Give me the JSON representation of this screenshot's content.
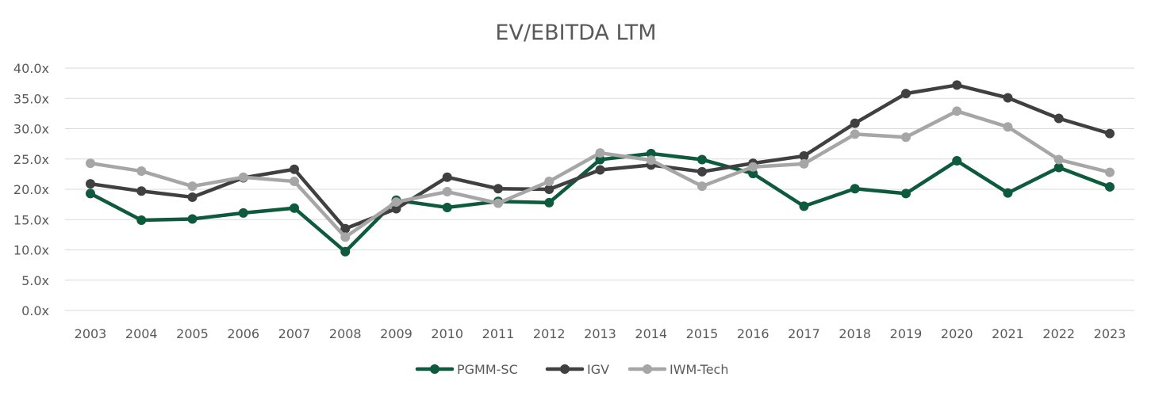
{
  "chart_data": {
    "type": "line",
    "title": "EV/EBITDA LTM",
    "xlabel": "",
    "ylabel": "",
    "categories": [
      "2003",
      "2004",
      "2005",
      "2006",
      "2007",
      "2008",
      "2009",
      "2010",
      "2011",
      "2012",
      "2013",
      "2014",
      "2015",
      "2016",
      "2017",
      "2018",
      "2019",
      "2020",
      "2021",
      "2022",
      "2023"
    ],
    "ylim": [
      0,
      40
    ],
    "yticks": [
      "0.0x",
      "5.0x",
      "10.0x",
      "15.0x",
      "20.0x",
      "25.0x",
      "30.0x",
      "35.0x",
      "40.0x"
    ],
    "grid": true,
    "legend_position": "bottom",
    "series": [
      {
        "name": "PGMM-SC",
        "color": "#0d5a3c",
        "values": [
          19.3,
          14.9,
          15.1,
          16.1,
          16.9,
          9.7,
          18.2,
          17.0,
          18.0,
          17.8,
          24.9,
          25.9,
          24.9,
          22.6,
          17.2,
          20.1,
          19.3,
          24.7,
          19.4,
          23.6,
          20.4
        ]
      },
      {
        "name": "IGV",
        "color": "#404040",
        "values": [
          20.9,
          19.7,
          18.7,
          21.9,
          23.3,
          13.5,
          16.8,
          22.0,
          20.1,
          20.0,
          23.2,
          24.0,
          22.9,
          24.3,
          25.5,
          30.9,
          35.8,
          37.2,
          35.1,
          31.7,
          29.2
        ]
      },
      {
        "name": "IWM-Tech",
        "color": "#a6a6a6",
        "values": [
          24.3,
          23.0,
          20.5,
          22.0,
          21.3,
          12.1,
          17.9,
          19.6,
          17.7,
          21.3,
          26.0,
          24.8,
          20.5,
          23.7,
          24.2,
          29.1,
          28.6,
          32.9,
          30.3,
          24.9,
          22.8
        ]
      }
    ]
  }
}
